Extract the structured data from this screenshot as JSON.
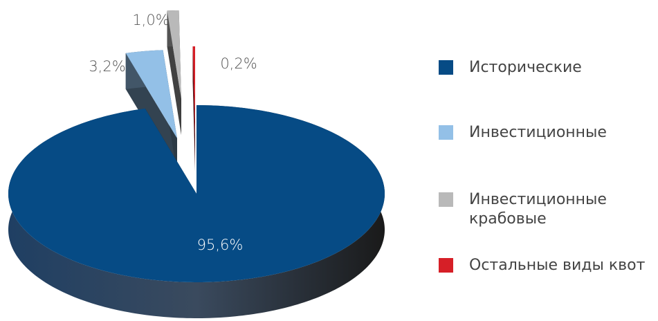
{
  "chart_data": {
    "type": "pie",
    "categories": [
      "Исторические",
      "Инвестиционные",
      "Инвестиционные крабовые",
      "Остальные виды квот"
    ],
    "values": [
      95.6,
      3.2,
      1.0,
      0.2
    ],
    "value_labels": [
      "95,6%",
      "3,2%",
      "1,0%",
      "0,2%"
    ],
    "colors": [
      "#064b85",
      "#93c0e7",
      "#b9b9b9",
      "#d61f27"
    ],
    "legend": "right"
  }
}
